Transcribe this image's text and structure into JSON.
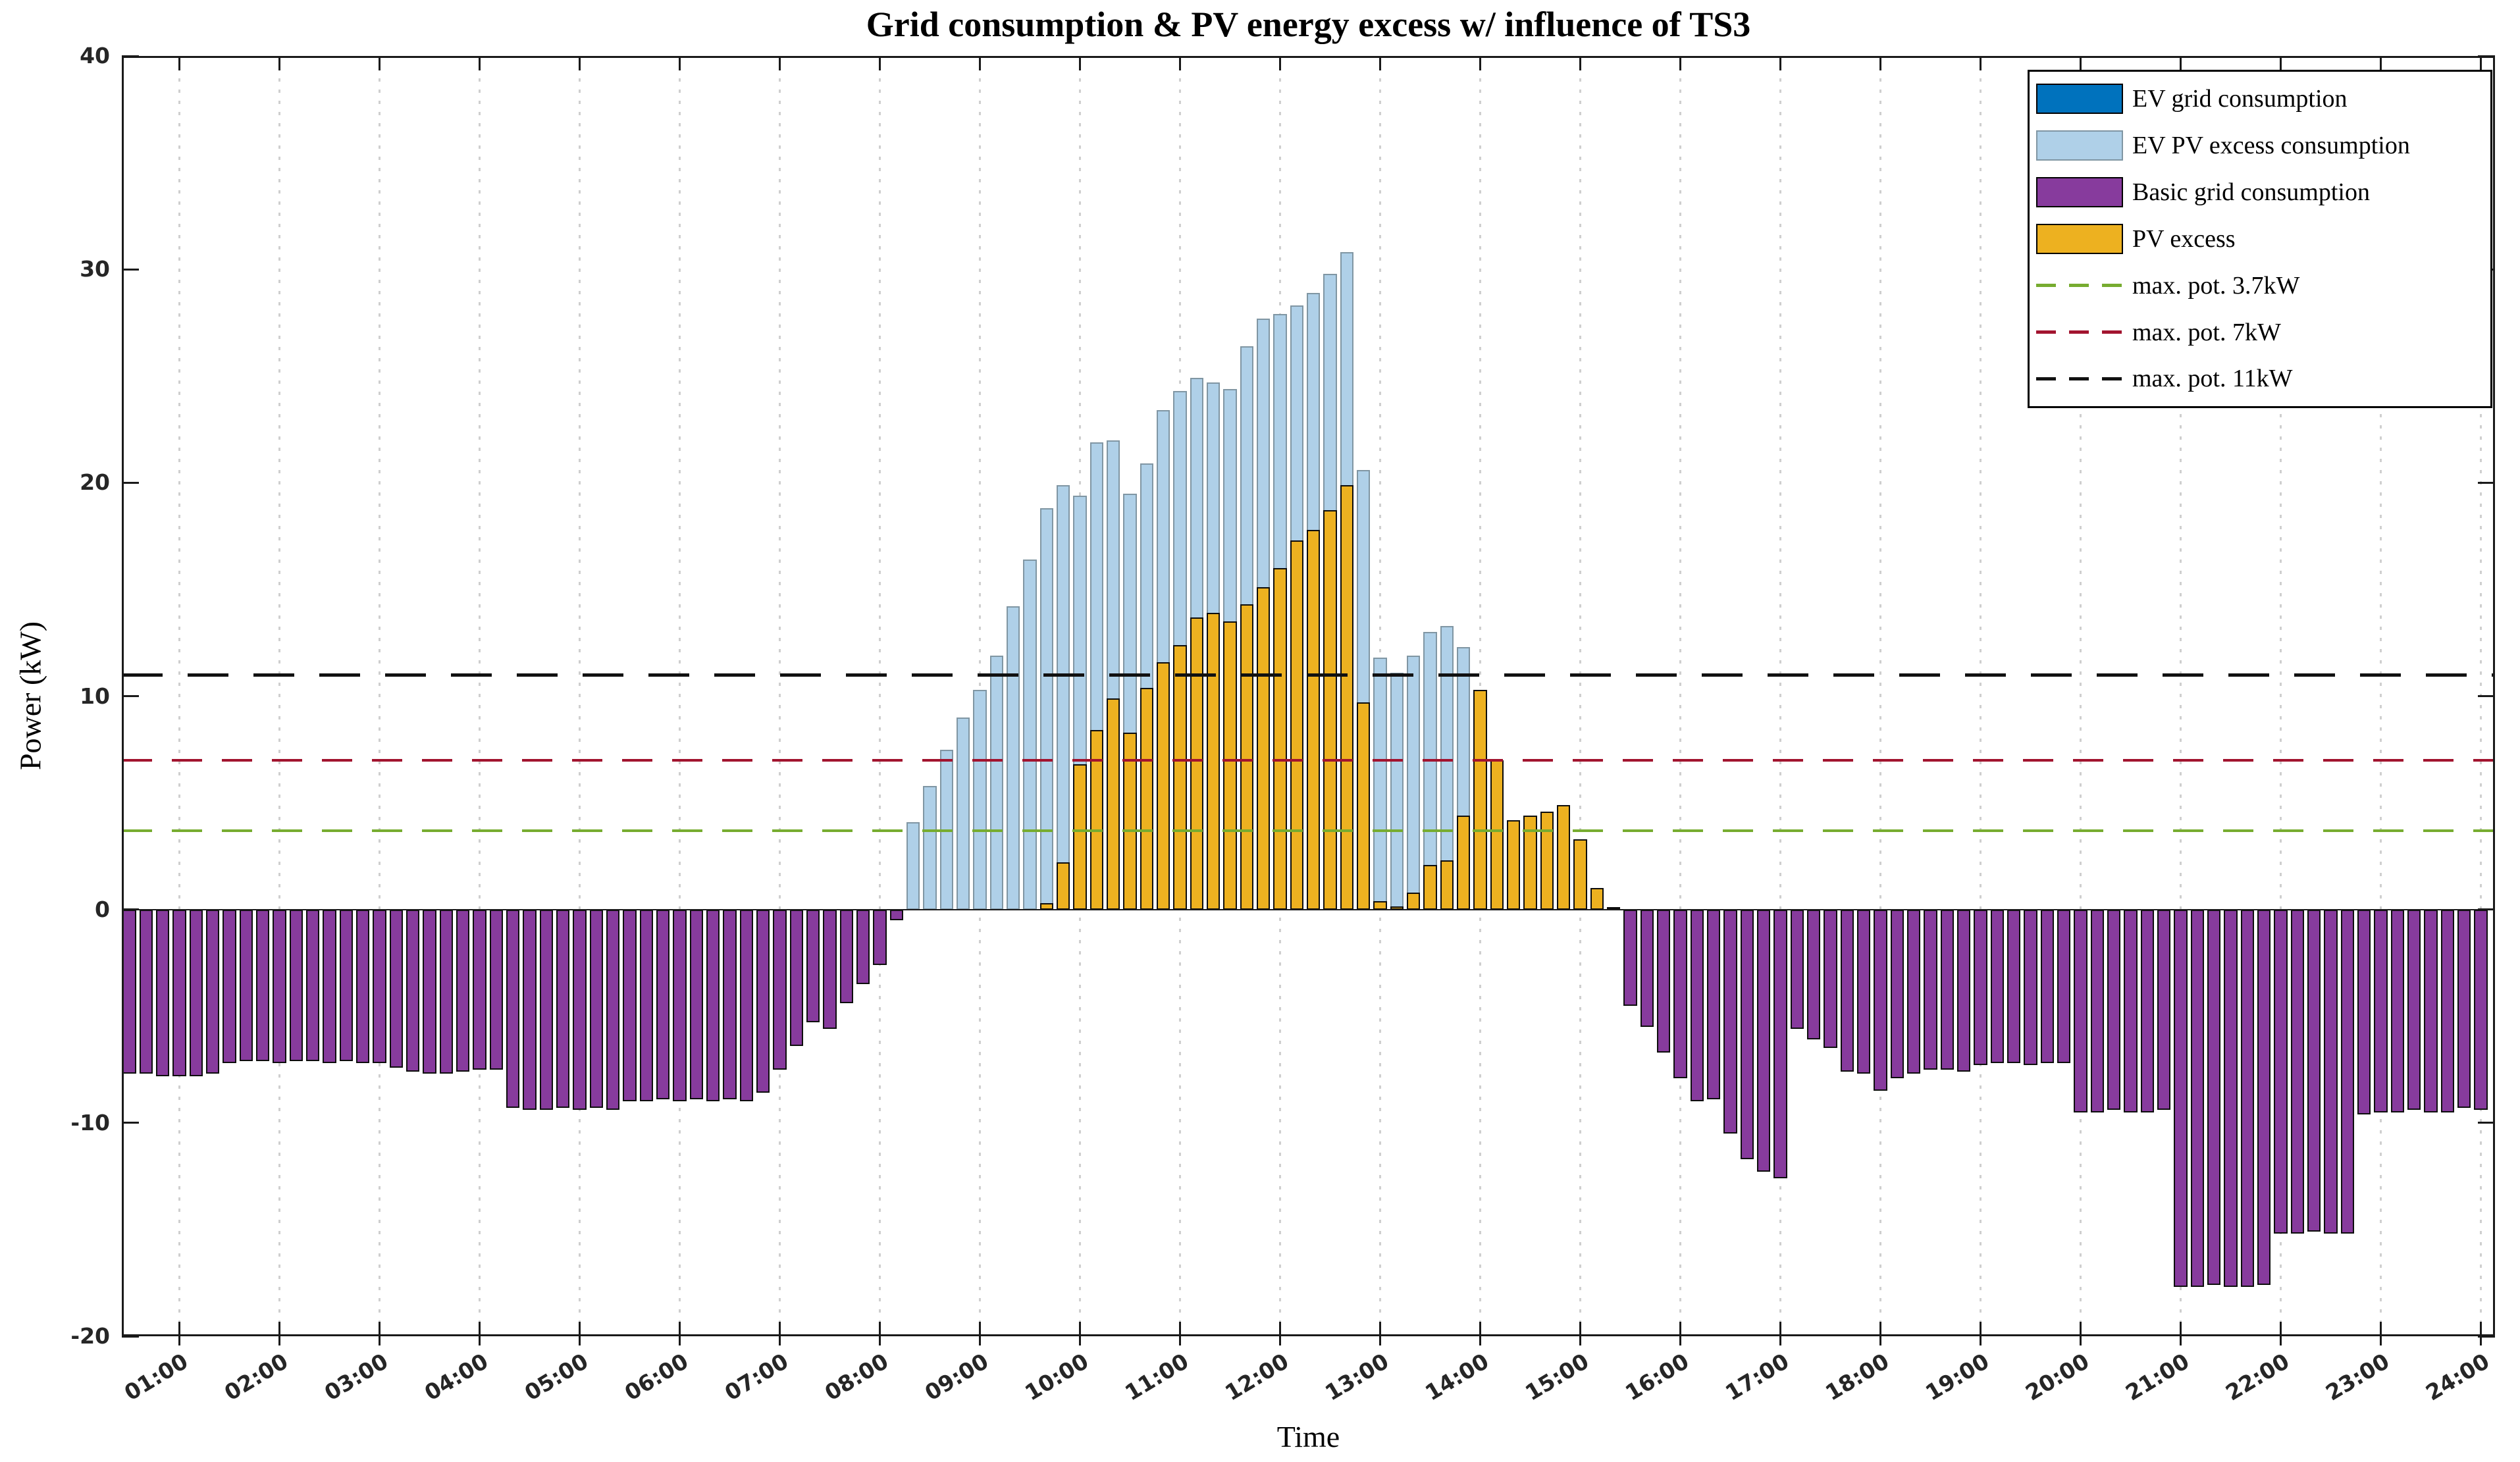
{
  "title": "Grid consumption & PV energy excess w/ influence of TS3",
  "xlabel": "Time",
  "ylabel": "Power (kW)",
  "axes": {
    "xlim_hours": [
      0.425,
      24.142
    ],
    "ylim": [
      -20,
      40
    ],
    "x_tick_labels": [
      "01:00",
      "02:00",
      "03:00",
      "04:00",
      "05:00",
      "06:00",
      "07:00",
      "08:00",
      "09:00",
      "10:00",
      "11:00",
      "12:00",
      "13:00",
      "14:00",
      "15:00",
      "16:00",
      "17:00",
      "18:00",
      "19:00",
      "20:00",
      "21:00",
      "22:00",
      "23:00",
      "24:00"
    ],
    "y_tick_values": [
      40,
      30,
      20,
      10,
      0,
      -10,
      -20
    ],
    "y_tick_labels": [
      "40",
      "30",
      "20",
      "10",
      "0",
      "-10",
      "-20"
    ],
    "grid": "vertical dotted at every hour"
  },
  "colors": {
    "background": "#ffffff",
    "axis": "#1a1a1a",
    "tick_text": "#262626",
    "grid": "#cfcfcf",
    "ev_grid": "#0072BD",
    "ev_pv_excess_fill": "#AFD0E8",
    "ev_pv_excess_edge": "#8096A3",
    "basic_grid_fill": "#873B9D",
    "basic_grid_edge": "#0d0d0d",
    "pv_excess_fill": "#EDB120",
    "pv_excess_edge": "#0d0d0d",
    "max_pot_37": "#77AC30",
    "max_pot_7": "#A2142F",
    "max_pot_11": "#111111"
  },
  "legend": {
    "items": [
      {
        "type": "patch",
        "label": "EV grid consumption",
        "fill": "#0072BD",
        "edge": "#000000"
      },
      {
        "type": "patch",
        "label": "EV PV excess consumption",
        "fill": "#AFD0E8",
        "edge": "#8096A3"
      },
      {
        "type": "patch",
        "label": "Basic grid consumption",
        "fill": "#873B9D",
        "edge": "#000000"
      },
      {
        "type": "patch",
        "label": "PV excess",
        "fill": "#EDB120",
        "edge": "#000000"
      },
      {
        "type": "line",
        "label": "max. pot. 3.7kW",
        "color": "#77AC30"
      },
      {
        "type": "line",
        "label": "max. pot. 7kW",
        "color": "#A2142F"
      },
      {
        "type": "line",
        "label": "max. pot. 11kW",
        "color": "#111111"
      }
    ]
  },
  "chart_data": {
    "type": "bar",
    "title": "Grid consumption & PV energy excess w/ influence of TS3",
    "xlabel": "Time",
    "ylabel": "Power (kW)",
    "x_unit": "time of day, 10-minute intervals",
    "bar_interval_minutes": 10,
    "xlim_hours": [
      0.425,
      24.142
    ],
    "ylim": [
      -20,
      40
    ],
    "legend_position": "top-right inside",
    "grid": "vertical dotted hourly",
    "reference_lines": [
      {
        "label": "max. pot. 3.7kW",
        "value": 3.7,
        "color": "#77AC30",
        "style": "dashed"
      },
      {
        "label": "max. pot. 7kW",
        "value": 7.0,
        "color": "#A2142F",
        "style": "dashed"
      },
      {
        "label": "max. pot. 11kW",
        "value": 11.0,
        "color": "#111111",
        "style": "dashed"
      }
    ],
    "series": [
      {
        "name": "EV grid consumption",
        "key": "ev-grid-consumption",
        "fill": "#0072BD",
        "edge": "#000000",
        "points": []
      },
      {
        "name": "EV PV excess consumption",
        "key": "ev-pv-excess-consumption",
        "fill": "#AFD0E8",
        "edge": "#8096A3",
        "points": [
          [
            "08:20",
            4.1
          ],
          [
            "08:30",
            5.8
          ],
          [
            "08:40",
            7.5
          ],
          [
            "08:50",
            9.0
          ],
          [
            "09:00",
            10.3
          ],
          [
            "09:10",
            11.9
          ],
          [
            "09:20",
            14.2
          ],
          [
            "09:30",
            16.4
          ],
          [
            "09:40",
            18.8
          ],
          [
            "09:50",
            19.9
          ],
          [
            "10:00",
            19.4
          ],
          [
            "10:10",
            21.9
          ],
          [
            "10:20",
            22.0
          ],
          [
            "10:30",
            19.5
          ],
          [
            "10:40",
            20.9
          ],
          [
            "10:50",
            23.4
          ],
          [
            "11:00",
            24.3
          ],
          [
            "11:10",
            24.9
          ],
          [
            "11:20",
            24.7
          ],
          [
            "11:30",
            24.4
          ],
          [
            "11:40",
            26.4
          ],
          [
            "11:50",
            27.7
          ],
          [
            "12:00",
            27.9
          ],
          [
            "12:10",
            28.3
          ],
          [
            "12:20",
            28.9
          ],
          [
            "12:30",
            29.8
          ],
          [
            "12:40",
            30.8
          ],
          [
            "12:50",
            20.6
          ],
          [
            "13:00",
            11.8
          ],
          [
            "13:10",
            11.1
          ],
          [
            "13:20",
            11.9
          ],
          [
            "13:30",
            13.0
          ],
          [
            "13:40",
            13.3
          ],
          [
            "13:50",
            12.3
          ]
        ]
      },
      {
        "name": "Basic grid consumption",
        "key": "basic-grid-consumption",
        "fill": "#873B9D",
        "edge": "#0d0d0d",
        "points": [
          [
            "00:30",
            -7.7
          ],
          [
            "00:40",
            -7.7
          ],
          [
            "00:50",
            -7.8
          ],
          [
            "01:00",
            -7.8
          ],
          [
            "01:10",
            -7.8
          ],
          [
            "01:20",
            -7.7
          ],
          [
            "01:30",
            -7.2
          ],
          [
            "01:40",
            -7.1
          ],
          [
            "01:50",
            -7.1
          ],
          [
            "02:00",
            -7.2
          ],
          [
            "02:10",
            -7.1
          ],
          [
            "02:20",
            -7.1
          ],
          [
            "02:30",
            -7.2
          ],
          [
            "02:40",
            -7.1
          ],
          [
            "02:50",
            -7.2
          ],
          [
            "03:00",
            -7.2
          ],
          [
            "03:10",
            -7.4
          ],
          [
            "03:20",
            -7.6
          ],
          [
            "03:30",
            -7.7
          ],
          [
            "03:40",
            -7.7
          ],
          [
            "03:50",
            -7.6
          ],
          [
            "04:00",
            -7.5
          ],
          [
            "04:10",
            -7.5
          ],
          [
            "04:20",
            -9.3
          ],
          [
            "04:30",
            -9.4
          ],
          [
            "04:40",
            -9.4
          ],
          [
            "04:50",
            -9.3
          ],
          [
            "05:00",
            -9.4
          ],
          [
            "05:10",
            -9.3
          ],
          [
            "05:20",
            -9.4
          ],
          [
            "05:30",
            -9.0
          ],
          [
            "05:40",
            -9.0
          ],
          [
            "05:50",
            -8.9
          ],
          [
            "06:00",
            -9.0
          ],
          [
            "06:10",
            -8.9
          ],
          [
            "06:20",
            -9.0
          ],
          [
            "06:30",
            -8.9
          ],
          [
            "06:40",
            -9.0
          ],
          [
            "06:50",
            -8.6
          ],
          [
            "07:00",
            -7.5
          ],
          [
            "07:10",
            -6.4
          ],
          [
            "07:20",
            -5.3
          ],
          [
            "07:30",
            -5.6
          ],
          [
            "07:40",
            -4.4
          ],
          [
            "07:50",
            -3.5
          ],
          [
            "08:00",
            -2.6
          ],
          [
            "08:10",
            -0.5
          ],
          [
            "15:30",
            -4.5
          ],
          [
            "15:40",
            -5.5
          ],
          [
            "15:50",
            -6.7
          ],
          [
            "16:00",
            -7.9
          ],
          [
            "16:10",
            -9.0
          ],
          [
            "16:20",
            -8.9
          ],
          [
            "16:30",
            -10.5
          ],
          [
            "16:40",
            -11.7
          ],
          [
            "16:50",
            -12.3
          ],
          [
            "17:00",
            -12.6
          ],
          [
            "17:10",
            -5.6
          ],
          [
            "17:20",
            -6.1
          ],
          [
            "17:30",
            -6.5
          ],
          [
            "17:40",
            -7.6
          ],
          [
            "17:50",
            -7.7
          ],
          [
            "18:00",
            -8.5
          ],
          [
            "18:10",
            -7.9
          ],
          [
            "18:20",
            -7.7
          ],
          [
            "18:30",
            -7.5
          ],
          [
            "18:40",
            -7.5
          ],
          [
            "18:50",
            -7.6
          ],
          [
            "19:00",
            -7.3
          ],
          [
            "19:10",
            -7.2
          ],
          [
            "19:20",
            -7.2
          ],
          [
            "19:30",
            -7.3
          ],
          [
            "19:40",
            -7.2
          ],
          [
            "19:50",
            -7.2
          ],
          [
            "20:00",
            -9.5
          ],
          [
            "20:10",
            -9.5
          ],
          [
            "20:20",
            -9.4
          ],
          [
            "20:30",
            -9.5
          ],
          [
            "20:40",
            -9.5
          ],
          [
            "20:50",
            -9.4
          ],
          [
            "21:00",
            -17.7
          ],
          [
            "21:10",
            -17.7
          ],
          [
            "21:20",
            -17.6
          ],
          [
            "21:30",
            -17.7
          ],
          [
            "21:40",
            -17.7
          ],
          [
            "21:50",
            -17.6
          ],
          [
            "22:00",
            -15.2
          ],
          [
            "22:10",
            -15.2
          ],
          [
            "22:20",
            -15.1
          ],
          [
            "22:30",
            -15.2
          ],
          [
            "22:40",
            -15.2
          ],
          [
            "22:50",
            -9.6
          ],
          [
            "23:00",
            -9.5
          ],
          [
            "23:10",
            -9.5
          ],
          [
            "23:20",
            -9.4
          ],
          [
            "23:30",
            -9.5
          ],
          [
            "23:40",
            -9.5
          ],
          [
            "23:50",
            -9.3
          ],
          [
            "24:00",
            -9.4
          ]
        ]
      },
      {
        "name": "PV excess",
        "key": "pv-excess",
        "fill": "#EDB120",
        "edge": "#0d0d0d",
        "points": [
          [
            "09:40",
            0.3
          ],
          [
            "09:50",
            2.2
          ],
          [
            "10:00",
            6.8
          ],
          [
            "10:10",
            8.4
          ],
          [
            "10:20",
            9.9
          ],
          [
            "10:30",
            8.3
          ],
          [
            "10:40",
            10.4
          ],
          [
            "10:50",
            11.6
          ],
          [
            "11:00",
            12.4
          ],
          [
            "11:10",
            13.7
          ],
          [
            "11:20",
            13.9
          ],
          [
            "11:30",
            13.5
          ],
          [
            "11:40",
            14.3
          ],
          [
            "11:50",
            15.1
          ],
          [
            "12:00",
            16.0
          ],
          [
            "12:10",
            17.3
          ],
          [
            "12:20",
            17.8
          ],
          [
            "12:30",
            18.7
          ],
          [
            "12:40",
            19.9
          ],
          [
            "12:50",
            9.7
          ],
          [
            "13:00",
            0.4
          ],
          [
            "13:10",
            0.15
          ],
          [
            "13:20",
            0.8
          ],
          [
            "13:30",
            2.1
          ],
          [
            "13:40",
            2.3
          ],
          [
            "13:50",
            4.4
          ],
          [
            "14:00",
            10.3
          ],
          [
            "14:10",
            7.0
          ],
          [
            "14:20",
            4.2
          ],
          [
            "14:30",
            4.4
          ],
          [
            "14:40",
            4.6
          ],
          [
            "14:50",
            4.9
          ],
          [
            "15:00",
            3.3
          ],
          [
            "15:10",
            1.0
          ],
          [
            "15:20",
            0.1
          ]
        ]
      }
    ]
  }
}
